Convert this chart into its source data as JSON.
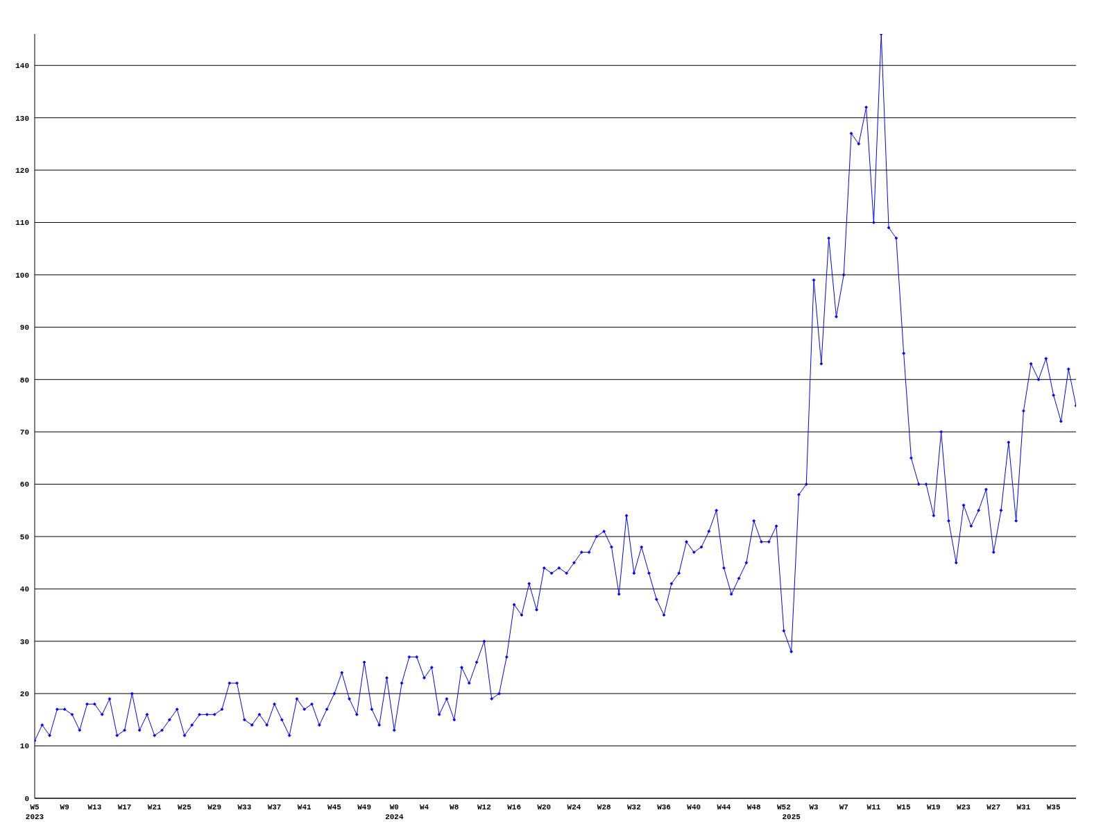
{
  "chart_data": {
    "type": "line",
    "categories": [
      "W5\n2023",
      null,
      null,
      null,
      "W9",
      null,
      null,
      null,
      "W13",
      null,
      null,
      null,
      "W17",
      null,
      null,
      null,
      "W21",
      null,
      null,
      null,
      "W25",
      null,
      null,
      null,
      "W29",
      null,
      null,
      null,
      "W33",
      null,
      null,
      null,
      "W37",
      null,
      null,
      null,
      "W41",
      null,
      null,
      null,
      "W45",
      null,
      null,
      null,
      "W49",
      null,
      null,
      null,
      "W0\n2024",
      null,
      null,
      null,
      "W4",
      null,
      null,
      null,
      "W8",
      null,
      null,
      null,
      "W12",
      null,
      null,
      null,
      "W16",
      null,
      null,
      null,
      "W20",
      null,
      null,
      null,
      "W24",
      null,
      null,
      null,
      "W28",
      null,
      null,
      null,
      "W32",
      null,
      null,
      null,
      "W36",
      null,
      null,
      null,
      "W40",
      null,
      null,
      null,
      "W44",
      null,
      null,
      null,
      "W48",
      null,
      null,
      null,
      "W52",
      "\n2025",
      null,
      null,
      "W3",
      null,
      null,
      null,
      "W7",
      null,
      null,
      null,
      "W11",
      null,
      null,
      null,
      "W15",
      null,
      null,
      null,
      "W19",
      null,
      null,
      null,
      "W23",
      null,
      null,
      null,
      "W27",
      null,
      null,
      null,
      "W31",
      null,
      null,
      null,
      "W35",
      null,
      null,
      null
    ],
    "series": [
      {
        "color": "#0000ff",
        "values": [
          11,
          14,
          12,
          17,
          17,
          16,
          13,
          18,
          18,
          16,
          19,
          12,
          13,
          20,
          13,
          16,
          12,
          13,
          15,
          17,
          12,
          14,
          16,
          16,
          16,
          17,
          22,
          22,
          15,
          14,
          16,
          14,
          18,
          15,
          12,
          19,
          17,
          18,
          14,
          17,
          20,
          24,
          19,
          16,
          26,
          17,
          14,
          23,
          13,
          22,
          27,
          27,
          23,
          25,
          16,
          19,
          15,
          25,
          22,
          26,
          30,
          19,
          20,
          27,
          37,
          35,
          41,
          36,
          44,
          43,
          44,
          43,
          45,
          47,
          47,
          50,
          51,
          48,
          39,
          54,
          43,
          48,
          43,
          38,
          35,
          41,
          43,
          49,
          47,
          48,
          51,
          55,
          44,
          39,
          42,
          45,
          53,
          49,
          49,
          52,
          32,
          28,
          58,
          60,
          99,
          83,
          107,
          92,
          100,
          127,
          125,
          132,
          110,
          146,
          109,
          107,
          85,
          65,
          60,
          60,
          54,
          70,
          53,
          45,
          56,
          52,
          55,
          59,
          47,
          55,
          68,
          53,
          74,
          83,
          80,
          84,
          77,
          72,
          82,
          75
        ]
      }
    ],
    "ylim": [
      0,
      146
    ],
    "yticks": [
      0,
      10,
      20,
      30,
      40,
      50,
      60,
      70,
      80,
      90,
      100,
      110,
      120,
      130,
      140
    ],
    "grid": "y",
    "marker": "diamond",
    "line_style": "solid"
  }
}
